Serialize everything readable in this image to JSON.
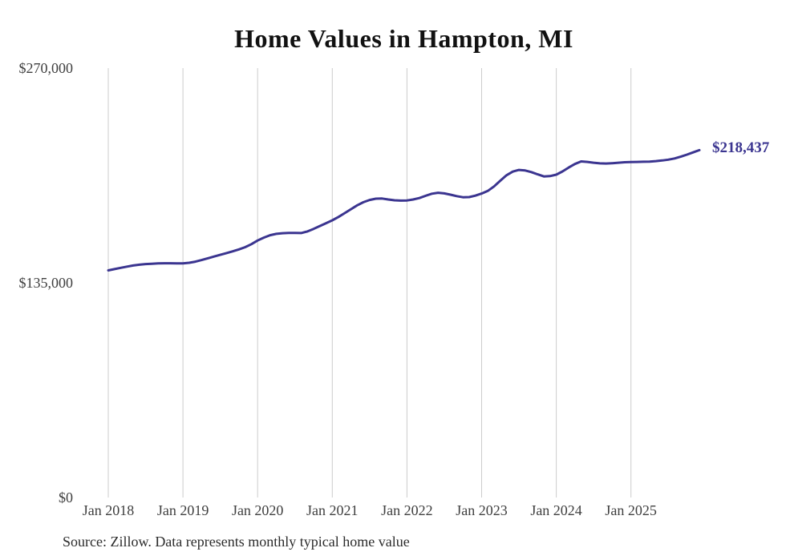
{
  "title": "Home Values in Hampton, MI",
  "source": "Source: Zillow. Data represents monthly typical home value",
  "colors": {
    "line": "#3b3590",
    "gridline": "#cccccc",
    "tick_label": "#3f3f3f",
    "title": "#111111",
    "source_text": "#2b2b2b"
  },
  "chart_data": {
    "type": "line",
    "title": "Home Values in Hampton, MI",
    "xlabel": "",
    "ylabel": "",
    "x_start": "2018-01",
    "x_end": "2025-12",
    "frequency": "monthly",
    "x_tick_labels": [
      "Jan 2018",
      "Jan 2019",
      "Jan 2020",
      "Jan 2021",
      "Jan 2022",
      "Jan 2023",
      "Jan 2024",
      "Jan 2025"
    ],
    "y_tick_labels": [
      "$270,000",
      "$135,000",
      "$0"
    ],
    "y_ticks": [
      270000,
      135000,
      0
    ],
    "ylim": [
      0,
      270000
    ],
    "grid": "vertical-only",
    "legend": "none",
    "end_label": "$218,437",
    "final_value": 218437,
    "series": [
      {
        "name": "Typical home value",
        "values": [
          142800,
          143600,
          144400,
          145200,
          145900,
          146400,
          146800,
          147000,
          147200,
          147300,
          147300,
          147250,
          147200,
          147600,
          148300,
          149300,
          150400,
          151500,
          152600,
          153700,
          154800,
          156000,
          157400,
          159300,
          161600,
          163400,
          164900,
          165800,
          166200,
          166400,
          166400,
          166300,
          167300,
          168900,
          170700,
          172500,
          174300,
          176400,
          178800,
          181300,
          183700,
          185700,
          187100,
          187900,
          188000,
          187400,
          186900,
          186700,
          186800,
          187400,
          188300,
          189700,
          191000,
          191600,
          191200,
          190400,
          189500,
          188800,
          188900,
          189800,
          191100,
          192800,
          195600,
          199200,
          202600,
          204900,
          206000,
          205600,
          204600,
          203200,
          201900,
          202100,
          203000,
          205000,
          207500,
          209700,
          211300,
          211000,
          210500,
          210100,
          210000,
          210200,
          210500,
          210800,
          210900,
          211000,
          211100,
          211200,
          211500,
          211900,
          212400,
          213200,
          214300,
          215600,
          217000,
          218437
        ]
      }
    ]
  }
}
